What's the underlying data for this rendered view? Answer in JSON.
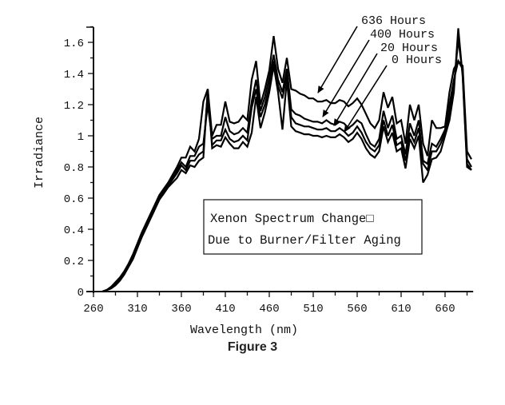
{
  "figure": {
    "caption": "Figure 3"
  },
  "chart_data": {
    "type": "line",
    "title": "Xenon Spectrum Change Due to Burner/Filter Aging",
    "annotation_box": {
      "line1": "Xenon Spectrum Change□",
      "line2": "Due to Burner/Filter Aging"
    },
    "xlabel": "Wavelength (nm)",
    "ylabel": "Irradiance",
    "xlim": [
      260,
      692
    ],
    "ylim": [
      0,
      1.7
    ],
    "grid": false,
    "legend_position": "inline-arrows-top-right",
    "x_ticks": [
      260,
      310,
      360,
      410,
      460,
      510,
      560,
      610,
      660
    ],
    "x_tick_labels": [
      "260",
      "310",
      "360",
      "410",
      "460",
      "510",
      "560",
      "610",
      "660"
    ],
    "y_ticks": [
      0,
      0.2,
      0.4,
      0.6,
      0.8,
      1,
      1.2,
      1.4,
      1.6
    ],
    "y_tick_labels": [
      "0",
      "0.2",
      "0.4",
      "0.6",
      "0.8",
      "1",
      "1.2",
      "1.4",
      "1.6"
    ],
    "x": [
      270,
      275,
      280,
      285,
      290,
      295,
      300,
      305,
      310,
      315,
      320,
      325,
      330,
      335,
      340,
      345,
      350,
      355,
      360,
      365,
      370,
      375,
      380,
      385,
      390,
      395,
      400,
      405,
      410,
      415,
      420,
      425,
      430,
      435,
      440,
      445,
      450,
      455,
      460,
      465,
      470,
      475,
      480,
      485,
      490,
      495,
      500,
      505,
      510,
      515,
      520,
      525,
      530,
      535,
      540,
      545,
      550,
      555,
      560,
      565,
      570,
      575,
      580,
      585,
      590,
      595,
      600,
      605,
      610,
      615,
      620,
      625,
      630,
      635,
      640,
      645,
      650,
      655,
      660,
      665,
      670,
      675,
      680,
      685,
      690
    ],
    "series": [
      {
        "name": "636 Hours",
        "values": [
          0.0,
          0.01,
          0.03,
          0.06,
          0.09,
          0.13,
          0.18,
          0.24,
          0.31,
          0.38,
          0.44,
          0.5,
          0.56,
          0.62,
          0.66,
          0.7,
          0.75,
          0.8,
          0.86,
          0.86,
          0.93,
          0.9,
          0.98,
          1.22,
          1.3,
          1.0,
          1.07,
          1.07,
          1.22,
          1.09,
          1.08,
          1.09,
          1.13,
          1.1,
          1.36,
          1.48,
          1.2,
          1.3,
          1.42,
          1.64,
          1.43,
          1.34,
          1.5,
          1.3,
          1.29,
          1.27,
          1.26,
          1.24,
          1.24,
          1.22,
          1.22,
          1.23,
          1.21,
          1.21,
          1.23,
          1.22,
          1.19,
          1.21,
          1.24,
          1.2,
          1.14,
          1.08,
          1.05,
          1.1,
          1.28,
          1.18,
          1.25,
          1.08,
          1.1,
          0.95,
          1.2,
          1.1,
          1.2,
          0.95,
          0.87,
          1.1,
          1.05,
          1.05,
          1.06,
          1.28,
          1.43,
          1.48,
          1.45,
          0.9,
          0.85
        ]
      },
      {
        "name": "400 Hours",
        "values": [
          0.0,
          0.01,
          0.03,
          0.05,
          0.08,
          0.12,
          0.17,
          0.23,
          0.3,
          0.37,
          0.43,
          0.49,
          0.55,
          0.61,
          0.65,
          0.69,
          0.73,
          0.78,
          0.83,
          0.8,
          0.87,
          0.87,
          0.93,
          0.95,
          1.2,
          0.98,
          1.0,
          1.0,
          1.12,
          1.03,
          1.01,
          1.02,
          1.05,
          1.02,
          1.22,
          1.36,
          1.16,
          1.25,
          1.37,
          1.52,
          1.36,
          1.28,
          1.43,
          1.17,
          1.14,
          1.13,
          1.11,
          1.1,
          1.09,
          1.09,
          1.08,
          1.1,
          1.08,
          1.07,
          1.09,
          1.08,
          1.05,
          1.07,
          1.1,
          1.08,
          1.01,
          0.95,
          0.93,
          0.98,
          1.16,
          1.05,
          1.13,
          0.98,
          1.0,
          0.88,
          1.08,
          1.0,
          1.1,
          0.84,
          0.82,
          0.95,
          0.93,
          0.98,
          1.04,
          1.2,
          1.36,
          1.48,
          1.43,
          0.85,
          0.8
        ]
      },
      {
        "name": "20 Hours",
        "values": [
          0.0,
          0.01,
          0.02,
          0.05,
          0.08,
          0.12,
          0.17,
          0.22,
          0.29,
          0.36,
          0.42,
          0.48,
          0.54,
          0.6,
          0.64,
          0.68,
          0.72,
          0.76,
          0.81,
          0.78,
          0.84,
          0.84,
          0.88,
          0.9,
          1.28,
          0.94,
          0.97,
          0.97,
          1.04,
          0.98,
          0.96,
          0.97,
          1.0,
          0.97,
          1.18,
          1.3,
          1.12,
          1.2,
          1.32,
          1.48,
          1.32,
          1.24,
          1.4,
          1.12,
          1.08,
          1.07,
          1.06,
          1.06,
          1.05,
          1.04,
          1.04,
          1.05,
          1.03,
          1.03,
          1.05,
          1.03,
          1.0,
          1.02,
          1.06,
          1.02,
          0.96,
          0.92,
          0.9,
          0.94,
          1.1,
          1.0,
          1.07,
          0.94,
          0.96,
          0.84,
          1.02,
          0.96,
          1.05,
          0.82,
          0.78,
          0.9,
          0.9,
          0.95,
          1.02,
          1.15,
          1.32,
          1.62,
          1.4,
          0.82,
          0.78
        ]
      },
      {
        "name": "0 Hours",
        "values": [
          0.0,
          0.01,
          0.02,
          0.04,
          0.07,
          0.11,
          0.16,
          0.21,
          0.28,
          0.35,
          0.41,
          0.47,
          0.53,
          0.59,
          0.63,
          0.67,
          0.7,
          0.73,
          0.78,
          0.76,
          0.81,
          0.8,
          0.84,
          0.86,
          1.3,
          0.92,
          0.94,
          0.93,
          0.99,
          0.95,
          0.92,
          0.92,
          0.96,
          0.93,
          1.02,
          1.25,
          1.05,
          1.15,
          1.28,
          1.45,
          1.28,
          1.04,
          1.36,
          1.06,
          1.03,
          1.02,
          1.01,
          1.01,
          1.0,
          1.0,
          0.99,
          1.0,
          0.99,
          0.99,
          1.01,
          0.99,
          0.96,
          0.98,
          1.02,
          0.98,
          0.92,
          0.88,
          0.86,
          0.9,
          1.06,
          0.96,
          1.02,
          0.9,
          0.92,
          0.79,
          0.98,
          0.92,
          1.0,
          0.7,
          0.75,
          0.85,
          0.86,
          0.9,
          1.0,
          1.1,
          1.28,
          1.69,
          1.38,
          0.8,
          0.78
        ]
      }
    ],
    "legend_labels": [
      {
        "text": "636 Hours",
        "x": 452,
        "y": 30,
        "arrow_from": [
          447,
          33
        ],
        "arrow_to": [
          398,
          116
        ]
      },
      {
        "text": "400 Hours",
        "x": 463,
        "y": 47,
        "arrow_from": [
          462,
          50
        ],
        "arrow_to": [
          404,
          146
        ]
      },
      {
        "text": "20 Hours",
        "x": 476,
        "y": 64,
        "arrow_from": [
          472,
          67
        ],
        "arrow_to": [
          418,
          157
        ]
      },
      {
        "text": "0 Hours",
        "x": 490,
        "y": 79,
        "arrow_from": [
          484,
          82
        ],
        "arrow_to": [
          431,
          165
        ]
      }
    ]
  }
}
